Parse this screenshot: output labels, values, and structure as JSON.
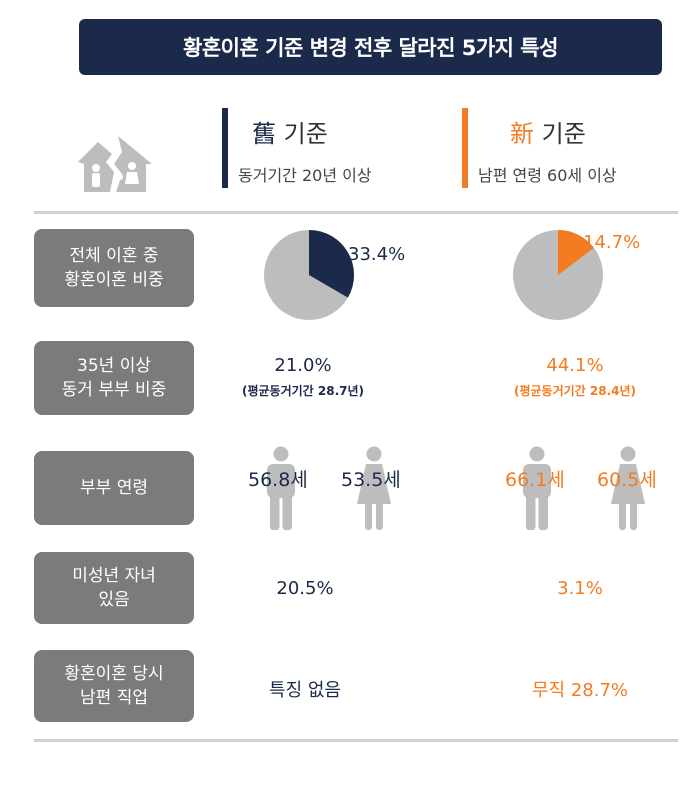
{
  "banner": {
    "title": "황혼이혼 기준 변경 전후 달라진 5가지 특성"
  },
  "icons": {
    "header": "broken-house-family-icon",
    "man": "man-icon",
    "woman": "woman-icon"
  },
  "colors": {
    "navy": "#1b2a4a",
    "orange": "#f47c20",
    "gray": "#bdbdbd",
    "label_bg": "#7b7b7b"
  },
  "columns": {
    "old": {
      "hanja": "舊",
      "title": "기준",
      "subtitle": "동거기간 20년 이상"
    },
    "new": {
      "hanja": "新",
      "title": "기준",
      "subtitle": "남편 연령 60세 이상"
    }
  },
  "rows": {
    "share": {
      "label_line1": "전체 이혼 중",
      "label_line2": "황혼이혼 비중",
      "old_value": "33.4%",
      "old_fraction": 0.334,
      "new_value": "14.7%",
      "new_fraction": 0.147
    },
    "cohab35": {
      "label_line1": "35년 이상",
      "label_line2": "동거 부부 비중",
      "old_value": "21.0%",
      "old_note": "(평균동거기간 28.7년)",
      "new_value": "44.1%",
      "new_note": "(평균동거기간 28.4년)"
    },
    "age": {
      "label": "부부 연령",
      "old_husband": "56.8세",
      "old_wife": "53.5세",
      "new_husband": "66.1세",
      "new_wife": "60.5세"
    },
    "children": {
      "label_line1": "미성년 자녀",
      "label_line2": "있음",
      "old_value": "20.5%",
      "new_value": "3.1%"
    },
    "job": {
      "label_line1": "황혼이혼 당시",
      "label_line2": "남편 직업",
      "old_value": "특징 없음",
      "new_value": "무직 28.7%"
    }
  }
}
